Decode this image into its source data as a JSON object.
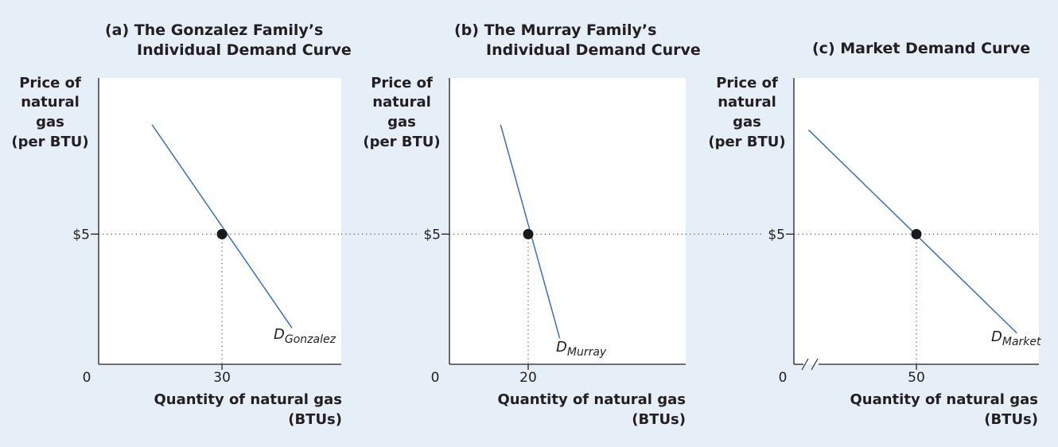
{
  "colors": {
    "background": "#e6eef8",
    "plot_area": "#ffffff",
    "axis": "#231f20",
    "curve": "#3a6fb5",
    "point": "#1a1a1a",
    "guide": "#555555"
  },
  "chart_data": [
    {
      "type": "line",
      "panel_label": "(a)",
      "title": [
        "The Gonzalez Family’s",
        "Individual Demand Curve"
      ],
      "ylabel": [
        "Price of",
        "natural",
        "gas",
        "(per BTU)"
      ],
      "xlabel": [
        "Quantity of natural gas",
        "(BTUs)"
      ],
      "origin_label": "0",
      "x_tick": {
        "label": "30",
        "value": 30
      },
      "y_tick": {
        "label": "$5",
        "value": 5
      },
      "xlim": [
        0,
        59
      ],
      "ylim": [
        0,
        11
      ],
      "axis_break": false,
      "series": [
        {
          "name": "D",
          "name_sub": "Gonzalez",
          "points": [
            [
              13,
              9.2
            ],
            [
              47,
              1.4
            ]
          ]
        }
      ],
      "highlight": {
        "x": 30,
        "y": 5
      }
    },
    {
      "type": "line",
      "panel_label": "(b)",
      "title": [
        "The Murray Family’s",
        "Individual Demand Curve"
      ],
      "ylabel": [
        "Price of",
        "natural",
        "gas",
        "(per BTU)"
      ],
      "xlabel": [
        "Quantity of natural gas",
        "(BTUs)"
      ],
      "origin_label": "0",
      "x_tick": {
        "label": "20",
        "value": 20
      },
      "y_tick": {
        "label": "$5",
        "value": 5
      },
      "xlim": [
        0,
        60
      ],
      "ylim": [
        0,
        11
      ],
      "axis_break": false,
      "series": [
        {
          "name": "D",
          "name_sub": "Murray",
          "points": [
            [
              13,
              9.2
            ],
            [
              28,
              1
            ]
          ]
        }
      ],
      "highlight": {
        "x": 20,
        "y": 5
      }
    },
    {
      "type": "line",
      "panel_label": "(c)",
      "title": [
        "Market Demand Curve"
      ],
      "ylabel": [
        "Price of",
        "natural",
        "gas",
        "(per BTU)"
      ],
      "xlabel": [
        "Quantity of natural gas",
        "(BTUs)"
      ],
      "origin_label": "0",
      "x_tick": {
        "label": "50",
        "value": 50
      },
      "y_tick": {
        "label": "$5",
        "value": 5
      },
      "xlim": [
        0,
        100
      ],
      "ylim": [
        0,
        11
      ],
      "axis_break": true,
      "series": [
        {
          "name": "D",
          "name_sub": "Market",
          "points": [
            [
              6,
              9
            ],
            [
              91,
              1.2
            ]
          ]
        }
      ],
      "highlight": {
        "x": 50,
        "y": 5
      }
    }
  ]
}
